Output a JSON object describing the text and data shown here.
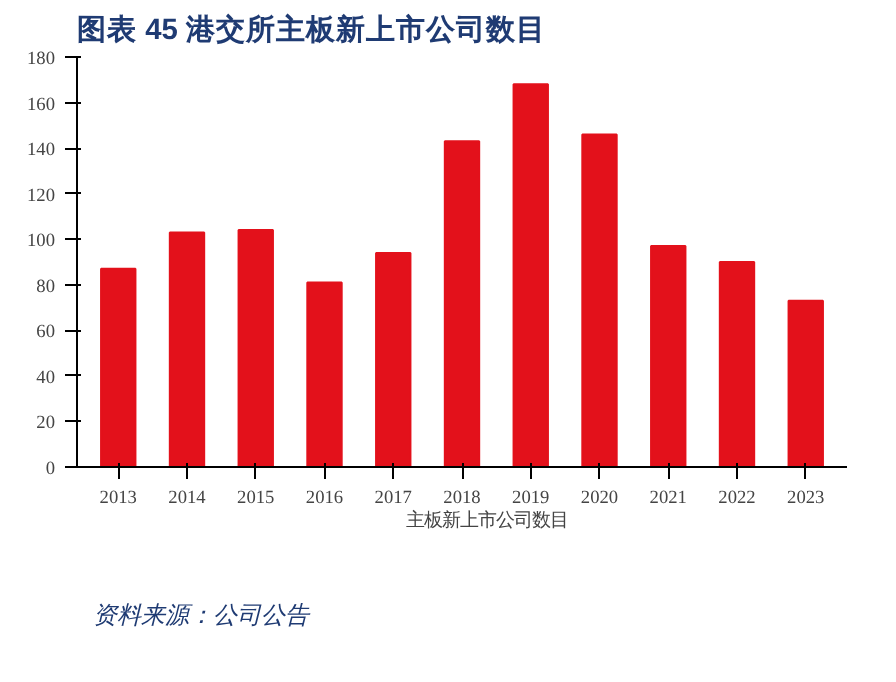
{
  "chart_data": {
    "type": "bar",
    "title": "图表 45   港交所主板新上市公司数目",
    "categories": [
      "2013",
      "2014",
      "2015",
      "2016",
      "2017",
      "2018",
      "2019",
      "2020",
      "2021",
      "2022",
      "2023"
    ],
    "series": [
      {
        "name": "主板新上市公司数目",
        "color": "#e3111b",
        "values": [
          87,
          103,
          104,
          81,
          94,
          143,
          168,
          146,
          97,
          90,
          73
        ]
      }
    ],
    "ylim": [
      0,
      180
    ],
    "yticks": [
      0,
      20,
      40,
      60,
      80,
      100,
      120,
      140,
      160,
      180
    ],
    "grid": false,
    "legend": "bottom",
    "annotations": [
      "资料来源：公司公告"
    ]
  }
}
